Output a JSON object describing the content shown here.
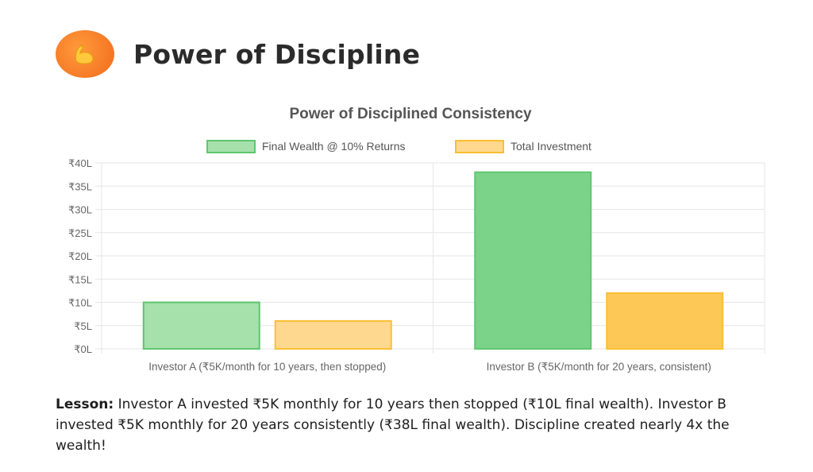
{
  "header": {
    "title": "Power of Discipline",
    "icon": "flexed-biceps-icon"
  },
  "lesson": {
    "label": "Lesson:",
    "text": "Investor A invested ₹5K monthly for 10 years then stopped (₹10L final wealth). Investor B invested ₹5K monthly for 20 years consistently (₹38L final wealth). Discipline created nearly 4x the wealth!"
  },
  "chart_data": {
    "type": "bar",
    "title": "Power of Disciplined Consistency",
    "categories": [
      "Investor A (₹5K/month for 10 years, then stopped)",
      "Investor B (₹5K/month for 20 years, consistent)"
    ],
    "series": [
      {
        "name": "Final Wealth @ 10% Returns",
        "values": [
          10,
          38
        ],
        "fill": "#a6e0ab",
        "fill_b": "#7bd38a",
        "stroke": "#5fc66f"
      },
      {
        "name": "Total Investment",
        "values": [
          6,
          12
        ],
        "fill": "#fed88f",
        "fill_b": "#fec857",
        "stroke": "#fbbf33"
      }
    ],
    "yticks": [
      "₹0L",
      "₹5L",
      "₹10L",
      "₹15L",
      "₹20L",
      "₹25L",
      "₹30L",
      "₹35L",
      "₹40L"
    ],
    "ylim": [
      0,
      40
    ],
    "grid": true,
    "legend": "top"
  }
}
